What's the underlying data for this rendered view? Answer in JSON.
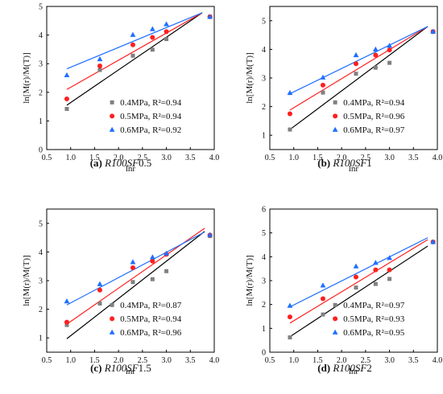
{
  "chart_data": [
    {
      "type": "scatter",
      "caption": {
        "letter": "(a)",
        "italic": "R100SF",
        "suffix": "0.5"
      },
      "xlabel": "lnr",
      "ylabel": "ln[M(r)/M(T)]",
      "xlim": [
        0.5,
        4.0
      ],
      "ylim": [
        0,
        5
      ],
      "xticks": [
        "0.5",
        "1.0",
        "1.5",
        "2.0",
        "2.5",
        "3.0",
        "3.5",
        "4.0"
      ],
      "yticks": [
        "0",
        "1",
        "2",
        "3",
        "4",
        "5"
      ],
      "legend_position": "lower-right",
      "series": [
        {
          "name": "0.4MPa, R²=0.94",
          "color": "#808080",
          "marker": "square",
          "x": [
            0.92,
            1.61,
            2.3,
            2.71,
            3.0,
            3.91
          ],
          "y": [
            1.42,
            2.78,
            3.28,
            3.49,
            3.86,
            4.64
          ],
          "fit": {
            "x": [
              0.92,
              3.75
            ],
            "y": [
              1.55,
              4.78
            ]
          }
        },
        {
          "name": "0.5MPa, R²=0.94",
          "color": "#ff1f1f",
          "marker": "circle",
          "x": [
            0.92,
            1.61,
            2.3,
            2.71,
            3.0,
            3.91
          ],
          "y": [
            1.77,
            2.92,
            3.66,
            3.92,
            4.12,
            4.64
          ],
          "fit": {
            "x": [
              0.92,
              3.75
            ],
            "y": [
              2.1,
              4.78
            ]
          }
        },
        {
          "name": "0.6MPa, R²=0.92",
          "color": "#1f6fff",
          "marker": "triangle",
          "x": [
            0.92,
            1.61,
            2.3,
            2.71,
            3.0,
            3.91
          ],
          "y": [
            2.6,
            3.16,
            4.01,
            4.21,
            4.38,
            4.64
          ],
          "fit": {
            "x": [
              0.92,
              3.75
            ],
            "y": [
              2.82,
              4.78
            ]
          }
        }
      ]
    },
    {
      "type": "scatter",
      "caption": {
        "letter": "(b)",
        "italic": "R100SF",
        "suffix": "1"
      },
      "xlabel": "lnr",
      "ylabel": "ln[M(r)/M(T)]",
      "xlim": [
        0.5,
        4.0
      ],
      "ylim": [
        0.5,
        5.5
      ],
      "xticks": [
        "0.5",
        "1.0",
        "1.5",
        "2.0",
        "2.5",
        "3.0",
        "3.5",
        "4.0"
      ],
      "yticks": [
        "1",
        "2",
        "3",
        "4",
        "5"
      ],
      "legend_position": "lower-right",
      "series": [
        {
          "name": "0.4MPa, R²=0.94",
          "color": "#808080",
          "marker": "square",
          "x": [
            0.92,
            1.61,
            2.3,
            2.71,
            3.0,
            3.91
          ],
          "y": [
            1.2,
            2.49,
            3.15,
            3.36,
            3.53,
            4.62
          ],
          "fit": {
            "x": [
              0.92,
              3.8
            ],
            "y": [
              1.2,
              4.8
            ]
          }
        },
        {
          "name": "0.5MPa, R²=0.96",
          "color": "#ff1f1f",
          "marker": "circle",
          "x": [
            0.92,
            1.61,
            2.3,
            2.71,
            3.0,
            3.91
          ],
          "y": [
            1.75,
            2.75,
            3.5,
            3.8,
            3.98,
            4.62
          ],
          "fit": {
            "x": [
              0.92,
              3.8
            ],
            "y": [
              1.88,
              4.8
            ]
          }
        },
        {
          "name": "0.6MPa, R²=0.97",
          "color": "#1f6fff",
          "marker": "triangle",
          "x": [
            0.92,
            1.61,
            2.3,
            2.71,
            3.0,
            3.91
          ],
          "y": [
            2.48,
            3.02,
            3.8,
            4.0,
            4.13,
            4.62
          ],
          "fit": {
            "x": [
              0.92,
              3.8
            ],
            "y": [
              2.45,
              4.8
            ]
          }
        }
      ]
    },
    {
      "type": "scatter",
      "caption": {
        "letter": "(c)",
        "italic": "R100SF",
        "suffix": "1.5"
      },
      "xlabel": "lnr",
      "ylabel": "ln[M(r)/M(T)]",
      "xlim": [
        0.5,
        4.0
      ],
      "ylim": [
        0.5,
        5.5
      ],
      "xticks": [
        "0.5",
        "1.0",
        "1.5",
        "2.0",
        "2.5",
        "3.0",
        "3.5",
        "4.0"
      ],
      "yticks": [
        "1",
        "2",
        "3",
        "4",
        "5"
      ],
      "legend_position": "lower-right",
      "series": [
        {
          "name": "0.4MPa, R²=0.87",
          "color": "#808080",
          "marker": "square",
          "x": [
            0.92,
            1.61,
            2.3,
            2.71,
            3.0,
            3.91
          ],
          "y": [
            1.45,
            2.2,
            2.95,
            3.05,
            3.33,
            4.56
          ],
          "fit": {
            "x": [
              0.92,
              3.8
            ],
            "y": [
              0.97,
              4.72
            ]
          }
        },
        {
          "name": "0.5MPa, R²=0.94",
          "color": "#ff1f1f",
          "marker": "circle",
          "x": [
            0.92,
            1.61,
            2.3,
            2.71,
            3.0,
            3.91
          ],
          "y": [
            1.55,
            2.67,
            3.45,
            3.68,
            3.92,
            4.59
          ],
          "fit": {
            "x": [
              0.92,
              3.8
            ],
            "y": [
              1.48,
              4.83
            ]
          }
        },
        {
          "name": "0.6MPa, R²=0.96",
          "color": "#1f6fff",
          "marker": "triangle",
          "x": [
            0.92,
            1.61,
            2.3,
            2.71,
            3.0,
            3.91
          ],
          "y": [
            2.28,
            2.88,
            3.65,
            3.82,
            3.95,
            4.6
          ],
          "fit": {
            "x": [
              0.92,
              3.8
            ],
            "y": [
              2.15,
              4.7
            ]
          }
        }
      ]
    },
    {
      "type": "scatter",
      "caption": {
        "letter": "(d)",
        "italic": "R100SF",
        "suffix": "2"
      },
      "xlabel": "lnr",
      "ylabel": "ln[M(r)/M(T)]",
      "xlim": [
        0.5,
        4.0
      ],
      "ylim": [
        0,
        6
      ],
      "xticks": [
        "0.5",
        "1.0",
        "1.5",
        "2.0",
        "2.5",
        "3.0",
        "3.5",
        "4.0"
      ],
      "yticks": [
        "0",
        "1",
        "2",
        "3",
        "4",
        "5",
        "6"
      ],
      "legend_position": "lower-right",
      "series": [
        {
          "name": "0.4MPa, R²=0.97",
          "color": "#808080",
          "marker": "square",
          "x": [
            0.92,
            1.61,
            2.3,
            2.71,
            3.0,
            3.91
          ],
          "y": [
            0.62,
            1.58,
            2.71,
            2.86,
            3.07,
            4.62
          ],
          "fit": {
            "x": [
              0.92,
              3.8
            ],
            "y": [
              0.65,
              4.45
            ]
          }
        },
        {
          "name": "0.5MPa, R²=0.93",
          "color": "#ff1f1f",
          "marker": "circle",
          "x": [
            0.92,
            1.61,
            2.3,
            2.71,
            3.0,
            3.91
          ],
          "y": [
            1.48,
            2.24,
            3.15,
            3.45,
            3.45,
            4.62
          ],
          "fit": {
            "x": [
              0.92,
              3.8
            ],
            "y": [
              1.22,
              4.72
            ]
          }
        },
        {
          "name": "0.6MPa, R²=0.95",
          "color": "#1f6fff",
          "marker": "triangle",
          "x": [
            0.92,
            1.61,
            2.3,
            2.71,
            3.0,
            3.91
          ],
          "y": [
            1.95,
            2.8,
            3.6,
            3.75,
            3.95,
            4.62
          ],
          "fit": {
            "x": [
              0.92,
              3.8
            ],
            "y": [
              1.9,
              4.8
            ]
          }
        }
      ]
    }
  ]
}
